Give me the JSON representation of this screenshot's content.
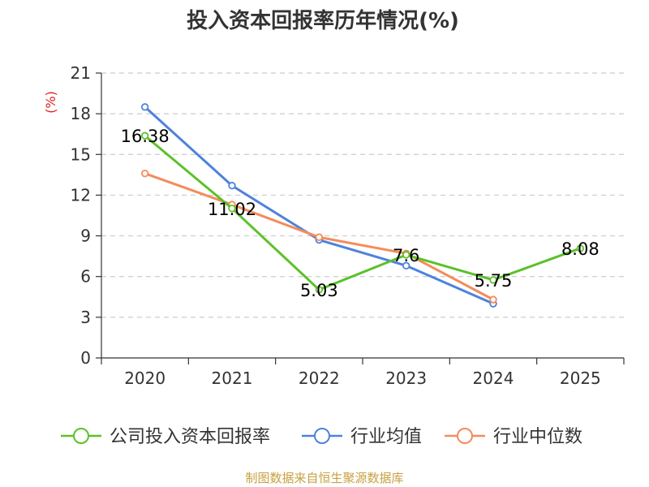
{
  "chart_data": {
    "type": "line",
    "title": "投入资本回报率历年情况(%)",
    "ylabel": "(%)",
    "xlabel": "",
    "categories": [
      "2020",
      "2021",
      "2022",
      "2023",
      "2024",
      "2025"
    ],
    "ylim": [
      0,
      21
    ],
    "yticks": [
      "0",
      "3",
      "6",
      "9",
      "12",
      "15",
      "18",
      "21"
    ],
    "grid": true,
    "legend_position": "bottom",
    "series": [
      {
        "name": "公司投入资本回报率",
        "color": "#5cc12a",
        "values": [
          16.38,
          11.02,
          5.03,
          7.6,
          5.75,
          8.08
        ],
        "labels": [
          "16.38",
          "11.02",
          "5.03",
          "7.6",
          "5.75",
          "8.08"
        ]
      },
      {
        "name": "行业均值",
        "color": "#4e82dc",
        "values": [
          18.5,
          12.7,
          8.7,
          6.8,
          4.0,
          null
        ]
      },
      {
        "name": "行业中位数",
        "color": "#f48c5a",
        "values": [
          13.6,
          11.3,
          8.9,
          7.7,
          4.3,
          null
        ]
      }
    ]
  },
  "source": "制图数据来自恒生聚源数据库"
}
